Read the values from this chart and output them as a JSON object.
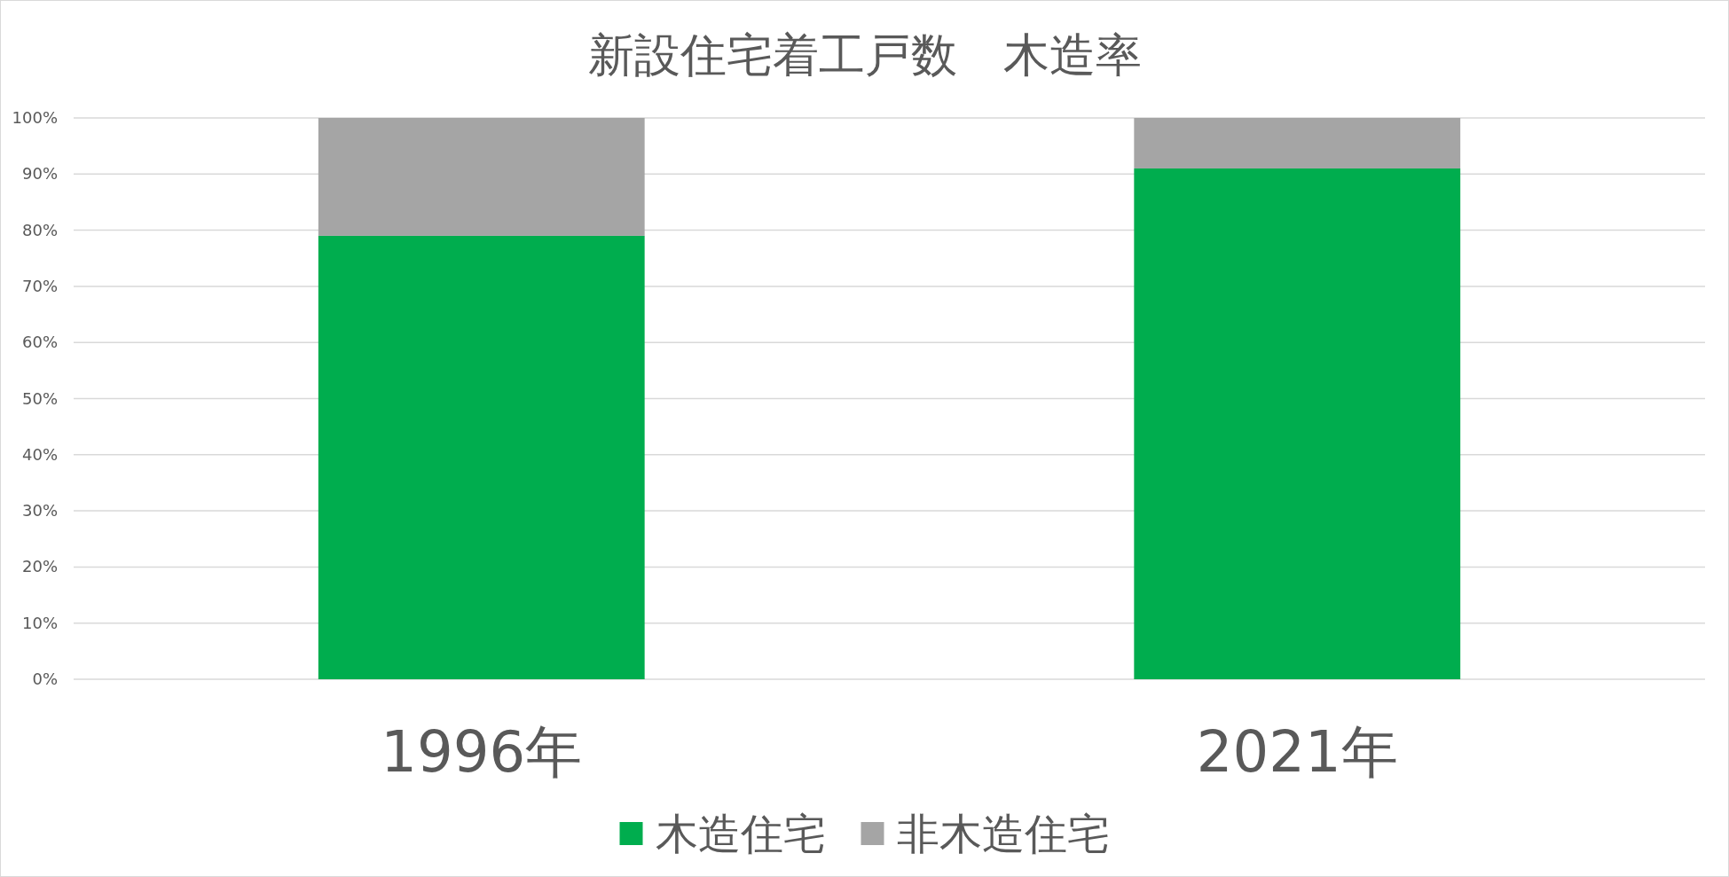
{
  "chart_data": {
    "type": "bar",
    "title": "新設住宅着工戸数　木造率",
    "stacked": true,
    "categories": [
      "1996年",
      "2021年"
    ],
    "series": [
      {
        "name": "木造住宅",
        "color": "#00ad4e",
        "values": [
          79,
          91
        ]
      },
      {
        "name": "非木造住宅",
        "color": "#a5a5a5",
        "values": [
          21,
          9
        ]
      }
    ],
    "ylim": [
      0,
      100
    ],
    "yticks": [
      {
        "value": 0,
        "label": "0%"
      },
      {
        "value": 10,
        "label": "10%"
      },
      {
        "value": 20,
        "label": "20%"
      },
      {
        "value": 30,
        "label": "30%"
      },
      {
        "value": 40,
        "label": "40%"
      },
      {
        "value": 50,
        "label": "50%"
      },
      {
        "value": 60,
        "label": "60%"
      },
      {
        "value": 70,
        "label": "70%"
      },
      {
        "value": 80,
        "label": "80%"
      },
      {
        "value": 90,
        "label": "90%"
      },
      {
        "value": 100,
        "label": "100%"
      }
    ],
    "grid": "y",
    "legend": "bottom"
  }
}
